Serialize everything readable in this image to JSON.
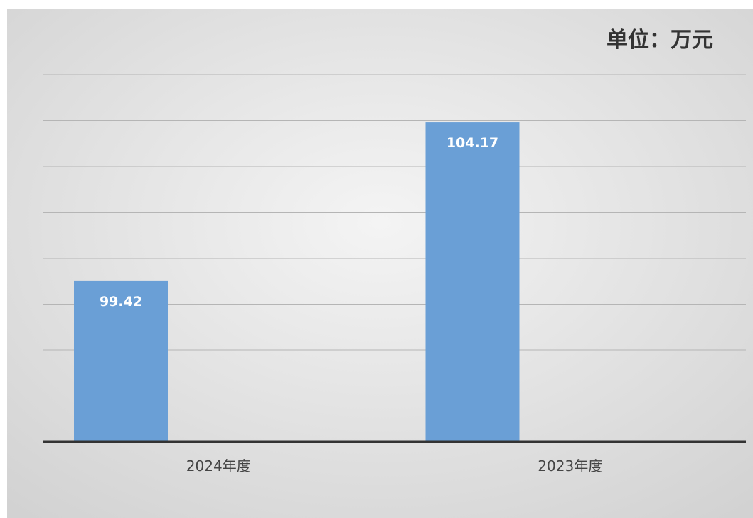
{
  "chart_data": {
    "type": "bar",
    "unit_label": "单位：万元",
    "categories": [
      "2024年度",
      "2023年度"
    ],
    "series": [
      {
        "values": [
          99.42,
          104.17
        ]
      }
    ],
    "data_labels": [
      "99.42",
      "104.17"
    ],
    "ylim": [
      94.6,
      105.6
    ],
    "grid": true,
    "legend": "none",
    "colors": {
      "bar": "#6a9fd6",
      "background_light": "#f4f4f4",
      "background_dark": "#d2d2d2",
      "gridline": "#b5b5b5",
      "axis": "#333333",
      "data_label": "#ffffff"
    }
  }
}
